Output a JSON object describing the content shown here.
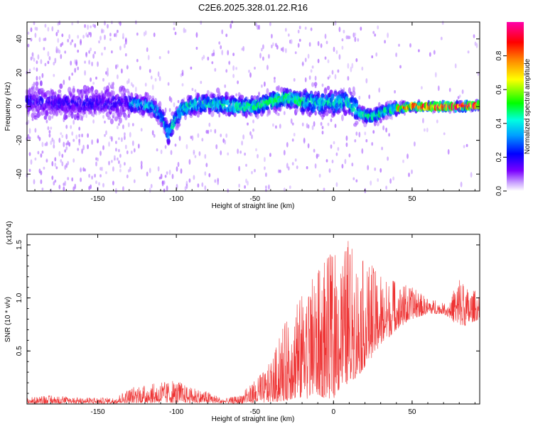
{
  "chart_data": [
    {
      "type": "heatmap",
      "title": "C2E6.2025.328.01.22.R16",
      "xlabel": "Height of straight line (km)",
      "ylabel": "Frequency (Hz)",
      "xlim": [
        -195,
        93
      ],
      "ylim": [
        -50,
        50
      ],
      "xticks": [
        -150,
        -100,
        -50,
        0,
        50
      ],
      "xtick_labels": [
        "-150",
        "-100",
        "-50",
        "0",
        "50"
      ],
      "yticks": [
        -40,
        -20,
        0,
        20,
        40
      ],
      "ytick_labels": [
        "-40",
        "-20",
        "0",
        "20",
        "40"
      ],
      "colorbar": {
        "label": "Normalized spectral amplitude",
        "range": [
          0,
          1
        ],
        "ticks": [
          0.0,
          0.2,
          0.4,
          0.6,
          0.8
        ],
        "tick_labels": [
          "0.0",
          "0.2",
          "0.4",
          "0.6",
          "0.8"
        ],
        "colormap": "rainbow",
        "colors": [
          "#ffffff",
          "#7b00ff",
          "#0000ff",
          "#00e5ff",
          "#00ff00",
          "#ffff00",
          "#ff7f00",
          "#ff0000",
          "#ff00aa"
        ]
      },
      "ridge": {
        "x": [
          -195,
          -170,
          -150,
          -130,
          -115,
          -108,
          -105,
          -102,
          -97,
          -90,
          -80,
          -70,
          -60,
          -50,
          -40,
          -30,
          -20,
          -10,
          0,
          10,
          15,
          20,
          25,
          30,
          35,
          40,
          50,
          60,
          70,
          80,
          93
        ],
        "y": [
          3,
          2,
          2,
          2,
          0,
          -8,
          -17,
          -10,
          -2,
          1,
          2,
          1,
          0,
          0,
          3,
          5,
          3,
          2,
          2,
          3,
          -3,
          -5,
          -6,
          -4,
          -2,
          -1,
          0,
          0,
          0,
          0,
          1
        ]
      },
      "grid": false
    },
    {
      "type": "line",
      "xlabel": "Height of straight line (km)",
      "ylabel": "SNR (10 * v/v)",
      "y_multiplier": "(x10^4)",
      "xlim": [
        -195,
        93
      ],
      "ylim": [
        0,
        1.6
      ],
      "xticks": [
        -150,
        -100,
        -50,
        0,
        50
      ],
      "xtick_labels": [
        "-150",
        "-100",
        "-50",
        "0",
        "50"
      ],
      "yticks": [
        0.5,
        1.0,
        1.5
      ],
      "ytick_labels": [
        "0.5",
        "1.0",
        "1.5"
      ],
      "series": [
        {
          "color": "#ee3333",
          "envelope": {
            "x": [
              -195,
              -180,
              -160,
              -140,
              -130,
              -120,
              -110,
              -100,
              -90,
              -80,
              -70,
              -60,
              -50,
              -45,
              -40,
              -35,
              -30,
              -25,
              -20,
              -15,
              -10,
              -5,
              0,
              5,
              10,
              15,
              20,
              25,
              30,
              40,
              50,
              60,
              70,
              75,
              80,
              85,
              93
            ],
            "low": [
              0.005,
              0.005,
              0.005,
              0.005,
              0.01,
              0.01,
              0.01,
              0.01,
              0.01,
              0.01,
              0.005,
              0.005,
              0.01,
              0.01,
              0.02,
              0.02,
              0.03,
              0.05,
              0.05,
              0.05,
              0.08,
              0.05,
              0.05,
              0.15,
              0.2,
              0.25,
              0.35,
              0.45,
              0.55,
              0.7,
              0.8,
              0.85,
              0.85,
              0.8,
              0.7,
              0.75,
              0.8
            ],
            "high": [
              0.06,
              0.08,
              0.06,
              0.06,
              0.15,
              0.18,
              0.2,
              0.22,
              0.15,
              0.12,
              0.05,
              0.08,
              0.22,
              0.3,
              0.4,
              0.6,
              0.8,
              0.9,
              1.05,
              1.2,
              1.25,
              1.35,
              1.45,
              1.45,
              1.55,
              1.4,
              1.35,
              1.3,
              1.2,
              1.15,
              1.1,
              1.0,
              0.95,
              1.0,
              1.25,
              1.1,
              1.05
            ]
          }
        }
      ],
      "grid": false
    }
  ]
}
